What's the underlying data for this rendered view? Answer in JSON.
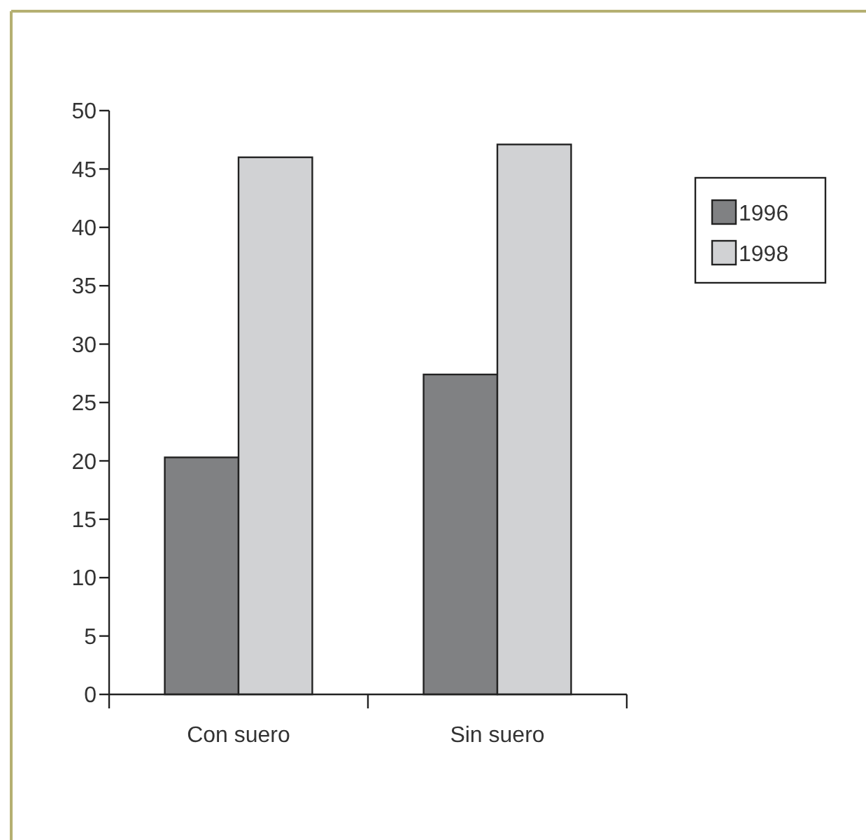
{
  "chart_data": {
    "type": "bar",
    "categories": [
      "Con suero",
      "Sin suero"
    ],
    "series": [
      {
        "name": "1996",
        "color": "#808183",
        "values": [
          20.3,
          27.4
        ]
      },
      {
        "name": "1998",
        "color": "#d1d2d4",
        "values": [
          46.0,
          47.1
        ]
      }
    ],
    "ylim": [
      0,
      50
    ],
    "yticks": [
      0,
      5,
      10,
      15,
      20,
      25,
      30,
      35,
      40,
      45,
      50
    ],
    "grid": false,
    "legend": "right"
  }
}
